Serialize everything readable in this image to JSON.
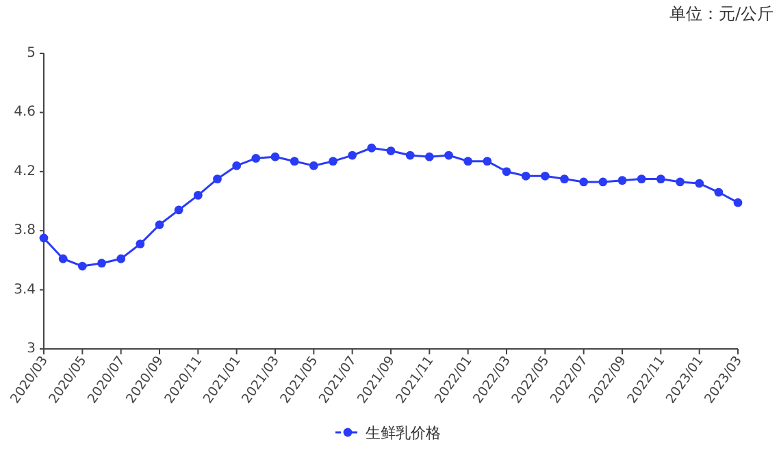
{
  "chart_data": {
    "type": "line",
    "annotations": [
      "单位：元/公斤"
    ],
    "categories": [
      "2020/03",
      null,
      "2020/05",
      null,
      "2020/07",
      null,
      "2020/09",
      null,
      "2020/11",
      null,
      "2021/01",
      null,
      "2021/03",
      null,
      "2021/05",
      null,
      "2021/07",
      null,
      "2021/09",
      null,
      "2021/11",
      null,
      "2022/01",
      null,
      "2022/03",
      null,
      "2022/05",
      null,
      "2022/07",
      null,
      "2022/09",
      null,
      "2022/11",
      null,
      "2023/01",
      null,
      "2023/03"
    ],
    "series": [
      {
        "name": "生鲜乳价格",
        "color": "#2a3bf5",
        "values": [
          3.75,
          3.61,
          3.56,
          3.58,
          3.61,
          3.71,
          3.84,
          3.94,
          4.04,
          4.15,
          4.24,
          4.29,
          4.3,
          4.27,
          4.24,
          4.27,
          4.31,
          4.36,
          4.34,
          4.31,
          4.3,
          4.31,
          4.27,
          4.27,
          4.2,
          4.17,
          4.17,
          4.15,
          4.13,
          4.13,
          4.14,
          4.15,
          4.15,
          4.13,
          4.12,
          4.06,
          3.99
        ]
      }
    ],
    "ylim": [
      3,
      5
    ],
    "yticks": [
      3,
      3.4,
      3.8,
      4.2,
      4.6,
      5
    ],
    "grid": false,
    "legend": "bottom",
    "marker": "circle",
    "line_style": "solid"
  }
}
